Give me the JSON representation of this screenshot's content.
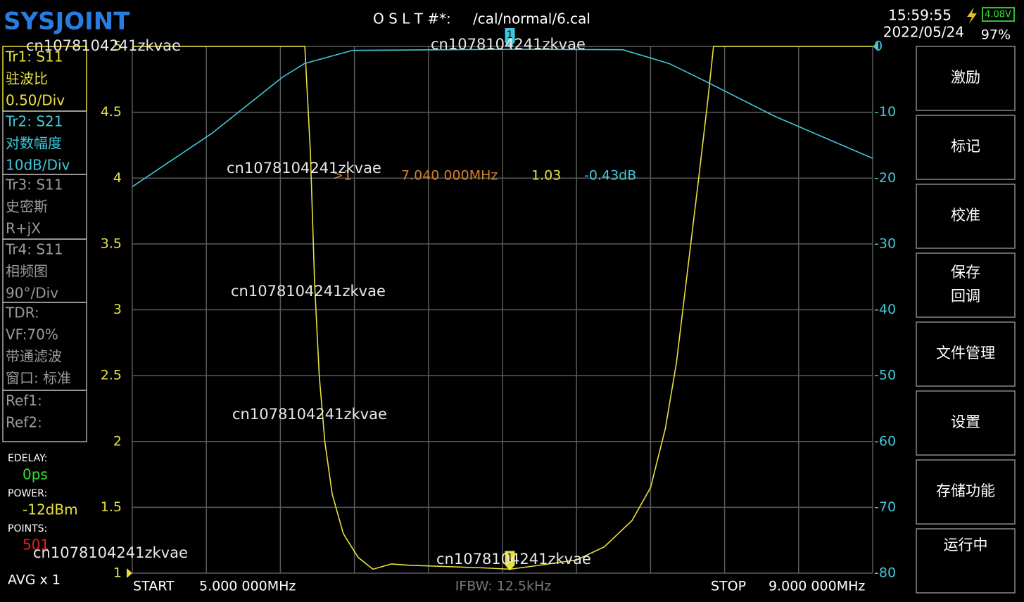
{
  "header": {
    "logo": "SYSJOINT",
    "cal_label": "O S L T #*:",
    "cal_file": "/cal/normal/6.cal",
    "time": "15:59:55",
    "date": "2022/05/24",
    "battery_voltage": "4.08V",
    "battery_percent": "97%"
  },
  "traces": [
    {
      "lines": [
        "Tr1:  S11",
        "驻波比",
        "0.50/Div"
      ],
      "color": "#e8e040"
    },
    {
      "lines": [
        "Tr2:  S21",
        "对数幅度",
        "10dB/Div"
      ],
      "color": "#40c8d8"
    },
    {
      "lines": [
        "Tr3:  S11",
        "史密斯",
        "R+jX"
      ],
      "color": "#9a9a9a"
    },
    {
      "lines": [
        "Tr4:  S11",
        "相频图",
        "90°/Div"
      ],
      "color": "#9a9a9a"
    },
    {
      "lines": [
        "TDR:",
        "VF:70%",
        "带通滤波",
        "窗口: 标准"
      ],
      "color": "#9a9a9a"
    },
    {
      "lines": [
        "Ref1:",
        "Ref2:"
      ],
      "color": "#9a9a9a"
    }
  ],
  "settings": [
    {
      "label": "EDELAY:",
      "value": "0ps",
      "color": "#30e030"
    },
    {
      "label": "POWER:",
      "value": "-12dBm",
      "color": "#e8e040"
    },
    {
      "label": "POINTS:",
      "value": "501",
      "color": "#e02020"
    }
  ],
  "avg": "AVG x 1",
  "menu": [
    {
      "lines": [
        "激励"
      ]
    },
    {
      "lines": [
        "标记"
      ]
    },
    {
      "lines": [
        "校准"
      ]
    },
    {
      "lines": [
        "保存",
        "回调"
      ]
    },
    {
      "lines": [
        "文件管理"
      ]
    },
    {
      "lines": [
        "设置"
      ]
    },
    {
      "lines": [
        "存储功能"
      ]
    },
    {
      "lines": [
        "运行中"
      ]
    }
  ],
  "footer": {
    "start_label": "START",
    "start": "5.000 000MHz",
    "ifbw": "IFBW: 12.5kHz",
    "stop_label": "STOP",
    "stop": "9.000 000MHz"
  },
  "watermarks": [
    "cn1078104241zkvae",
    "cn1078104241zkvae",
    "cn1078104241zkvae",
    "cn1078104241zkvae",
    "cn1078104241zkvae",
    "cn1078104241zkvae",
    "cn1078104241zkvae"
  ],
  "chart_data": {
    "type": "line",
    "grid": true,
    "xlim": [
      5,
      9
    ],
    "xticks": [
      5,
      5.4,
      5.8,
      6.2,
      6.6,
      7,
      7.4,
      7.8,
      8.2,
      8.6,
      9
    ],
    "ylim": [
      1,
      5
    ],
    "yticks": [
      1,
      1.5,
      2,
      2.5,
      3,
      3.5,
      4,
      4.5,
      5
    ],
    "y2lim": [
      -80,
      0
    ],
    "y2ticks": [
      0,
      -10,
      -20,
      -30,
      -40,
      -50,
      -60,
      -70,
      -80
    ],
    "series": [
      {
        "color": "#e8e040",
        "axis": "y",
        "x": [
          5,
          5.932,
          5.962,
          5.985,
          6.01,
          6.04,
          6.08,
          6.14,
          6.22,
          6.3,
          6.4,
          6.5,
          6.7,
          6.9,
          7.04,
          7.2,
          7.4,
          7.55,
          7.7,
          7.8,
          7.88,
          7.94,
          8,
          8.06,
          8.11,
          8.14,
          9
        ],
        "values": [
          5,
          5,
          4.2,
          3.2,
          2.5,
          2,
          1.6,
          1.3,
          1.12,
          1.03,
          1.07,
          1.06,
          1.05,
          1.04,
          1.03,
          1.06,
          1.1,
          1.2,
          1.4,
          1.65,
          2.1,
          2.6,
          3.3,
          4,
          4.6,
          5,
          5
        ]
      },
      {
        "color": "#40c8d8",
        "axis": "y2",
        "x": [
          5,
          5.43,
          5.81,
          5.93,
          6.19,
          7.04,
          7.65,
          7.9,
          8.09,
          8.47,
          9
        ],
        "values": [
          -21.3,
          -13.2,
          -4.7,
          -2.6,
          -0.6,
          -0.43,
          -0.5,
          -2.6,
          -5.2,
          -10.6,
          -17
        ]
      }
    ],
    "marker": {
      "id": "1",
      "readout_id": ">1",
      "freq": "7.040 000MHz",
      "x": 7.04,
      "values": [
        1.03,
        -0.43
      ],
      "value_labels": [
        "1.03",
        "-0.43dB"
      ]
    }
  }
}
